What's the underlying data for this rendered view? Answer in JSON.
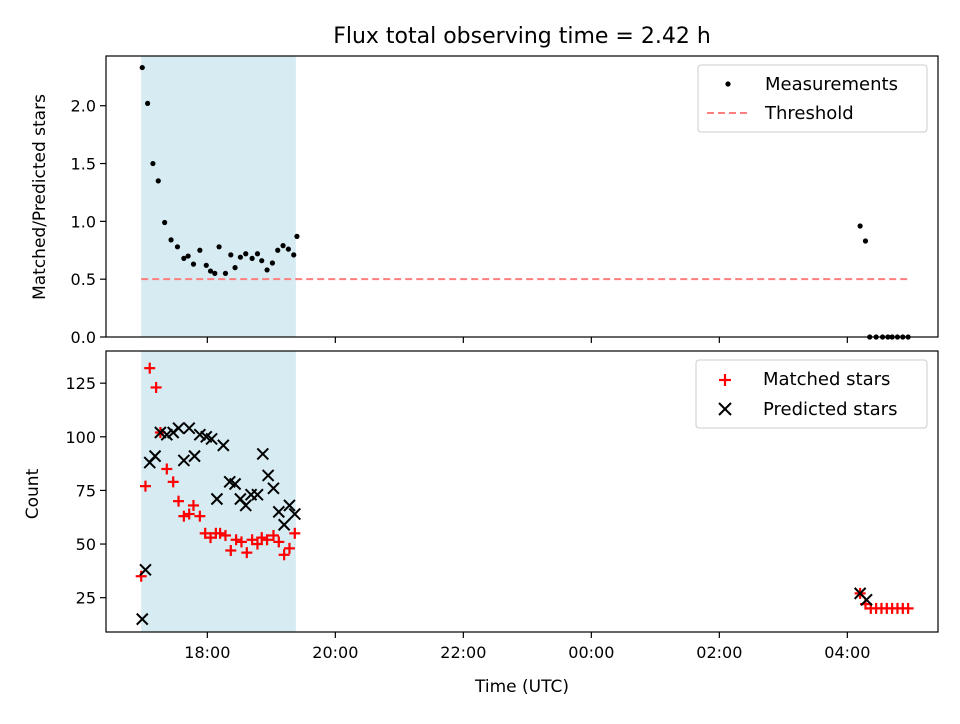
{
  "chart_data": [
    {
      "type": "scatter",
      "title": "Flux total observing time = 2.42 h",
      "ylabel": "Matched/Predicted stars",
      "ylim": [
        0,
        2.43
      ],
      "yticks": [
        "0.0",
        "0.5",
        "1.0",
        "1.5",
        "2.0"
      ],
      "ytick_values": [
        0,
        0.5,
        1.0,
        1.5,
        2.0
      ],
      "shaded_region": {
        "x_start": "16:58",
        "x_end": "19:23",
        "color": "#add8e6"
      },
      "threshold": 0.5,
      "legend_position": "top-right",
      "legend": {
        "measurements": "Measurements",
        "threshold": "Threshold"
      },
      "colors": {
        "measurements": "#000000",
        "threshold": "#ff7f7f"
      },
      "series": [
        {
          "name": "Measurements",
          "x": [
            "16:59",
            "17:04",
            "17:09",
            "17:14",
            "17:20",
            "17:26",
            "17:32",
            "17:38",
            "17:42",
            "17:47",
            "17:53",
            "17:59",
            "18:03",
            "18:07",
            "18:11",
            "18:17",
            "18:22",
            "18:26",
            "18:31",
            "18:36",
            "18:42",
            "18:47",
            "18:51",
            "18:56",
            "19:01",
            "19:06",
            "19:11",
            "19:16",
            "19:21",
            "19:24",
            "04:12",
            "04:17",
            "04:21",
            "04:27",
            "04:33",
            "04:38",
            "04:42",
            "04:47",
            "04:52",
            "04:57"
          ],
          "y": [
            2.33,
            2.02,
            1.5,
            1.35,
            0.99,
            0.84,
            0.78,
            0.68,
            0.7,
            0.63,
            0.75,
            0.62,
            0.57,
            0.55,
            0.78,
            0.55,
            0.71,
            0.6,
            0.69,
            0.72,
            0.68,
            0.72,
            0.66,
            0.58,
            0.64,
            0.75,
            0.79,
            0.76,
            0.71,
            0.87,
            0.96,
            0.83,
            0.0,
            0.0,
            0.0,
            0.0,
            0.0,
            0.0,
            0.0,
            0.0
          ]
        },
        {
          "name": "Threshold",
          "x": [
            "16:58",
            "04:57"
          ],
          "y": [
            0.5,
            0.5
          ]
        }
      ]
    },
    {
      "type": "scatter",
      "title": "",
      "xlabel": "Time (UTC)",
      "ylabel": "Count",
      "ylim": [
        9,
        140
      ],
      "yticks": [
        "25",
        "50",
        "75",
        "100",
        "125"
      ],
      "ytick_values": [
        25,
        50,
        75,
        100,
        125
      ],
      "xticks": [
        "18:00",
        "20:00",
        "22:00",
        "00:00",
        "02:00",
        "04:00"
      ],
      "xtick_values": [
        "18:00",
        "20:00",
        "22:00",
        "00:00",
        "02:00",
        "04:00"
      ],
      "xlim": [
        "16:25",
        "05:25"
      ],
      "shaded_region": {
        "x_start": "16:58",
        "x_end": "19:23",
        "color": "#add8e6"
      },
      "legend_position": "top-right",
      "legend": {
        "matched": "Matched stars",
        "predicted": "Predicted stars"
      },
      "colors": {
        "matched": "#ff0000",
        "predicted": "#000000"
      },
      "series": [
        {
          "name": "Matched stars",
          "x": [
            "16:58",
            "17:02",
            "17:06",
            "17:12",
            "17:16",
            "17:22",
            "17:28",
            "17:33",
            "17:38",
            "17:43",
            "17:47",
            "17:53",
            "17:58",
            "18:03",
            "18:08",
            "18:12",
            "18:17",
            "18:22",
            "18:27",
            "18:32",
            "18:37",
            "18:42",
            "18:47",
            "18:51",
            "18:56",
            "19:02",
            "19:07",
            "19:12",
            "19:17",
            "19:22",
            "04:12",
            "04:17",
            "04:22",
            "04:27",
            "04:32",
            "04:37",
            "04:42",
            "04:47",
            "04:52",
            "04:57"
          ],
          "y": [
            35,
            77,
            132,
            123,
            102,
            85,
            79,
            70,
            63,
            64,
            68,
            63,
            55,
            53,
            55,
            55,
            54,
            47,
            52,
            51,
            46,
            52,
            50,
            53,
            52,
            54,
            51,
            45,
            48,
            55,
            27,
            22,
            20,
            20,
            20,
            20,
            20,
            20,
            20,
            20
          ]
        },
        {
          "name": "Predicted stars",
          "x": [
            "16:59",
            "17:02",
            "17:06",
            "17:11",
            "17:16",
            "17:22",
            "17:28",
            "17:33",
            "17:38",
            "17:43",
            "17:48",
            "17:53",
            "17:59",
            "18:04",
            "18:09",
            "18:15",
            "18:21",
            "18:26",
            "18:31",
            "18:36",
            "18:41",
            "18:47",
            "18:52",
            "18:57",
            "19:02",
            "19:07",
            "19:12",
            "19:17",
            "19:22",
            "04:12",
            "04:18"
          ],
          "y": [
            15,
            38,
            88,
            91,
            102,
            101,
            102,
            104,
            89,
            104,
            91,
            101,
            100,
            99,
            71,
            96,
            79,
            78,
            71,
            68,
            73,
            73,
            92,
            82,
            76,
            65,
            59,
            68,
            64,
            27,
            24
          ]
        }
      ]
    }
  ]
}
